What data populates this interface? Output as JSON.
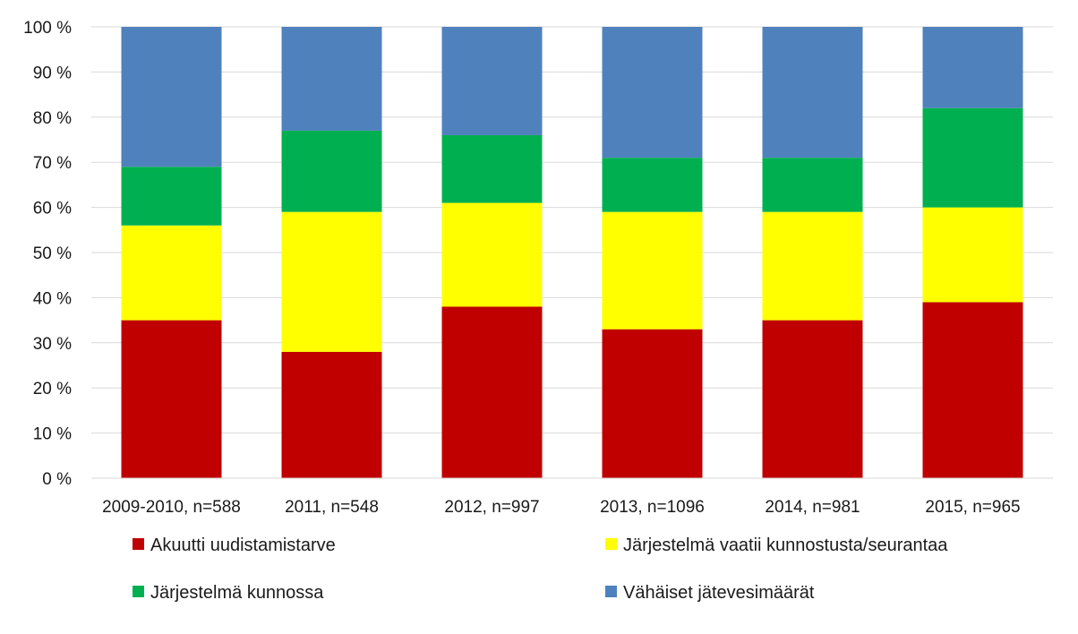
{
  "chart_data": {
    "type": "bar",
    "stacked": true,
    "categories": [
      "2009-2010, n=588",
      "2011, n=548",
      "2012, n=997",
      "2013, n=1096",
      "2014, n=981",
      "2015, n=965"
    ],
    "series": [
      {
        "name": "Akuutti uudistamistarve",
        "color": "#c00000",
        "values": [
          35,
          28,
          38,
          33,
          35,
          39
        ]
      },
      {
        "name": "Järjestelmä vaatii kunnostusta/seurantaa",
        "color": "#ffff00",
        "values": [
          21,
          31,
          23,
          26,
          24,
          21
        ]
      },
      {
        "name": "Järjestelmä kunnossa",
        "color": "#00b050",
        "values": [
          13,
          18,
          15,
          12,
          12,
          22
        ]
      },
      {
        "name": "Vähäiset jätevesimäärät",
        "color": "#4f81bd",
        "values": [
          31,
          23,
          24,
          29,
          29,
          18
        ]
      }
    ],
    "y_ticks": [
      "0 %",
      "10 %",
      "20 %",
      "30 %",
      "40 %",
      "50 %",
      "60 %",
      "70 %",
      "80 %",
      "90 %",
      "100 %"
    ],
    "ylim": [
      0,
      100
    ],
    "grid": true,
    "legend_position": "bottom",
    "title": "",
    "xlabel": "",
    "ylabel": ""
  }
}
